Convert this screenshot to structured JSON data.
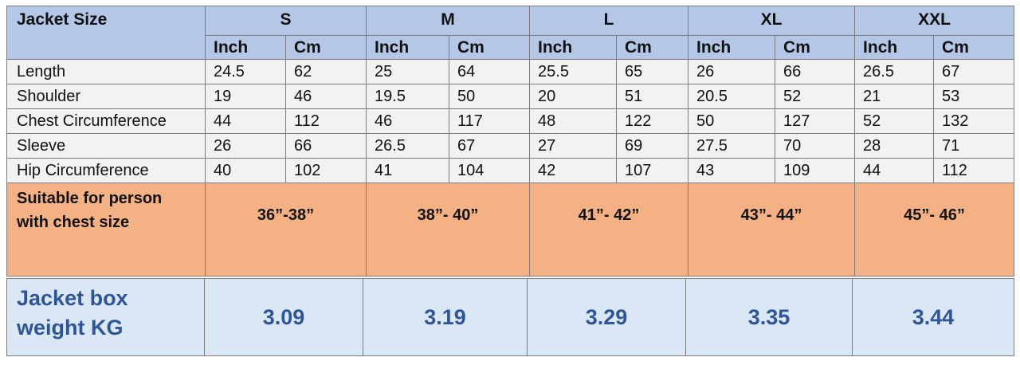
{
  "header": {
    "corner_label": "Jacket Size",
    "sizes": [
      "S",
      "M",
      "L",
      "XL",
      "XXL"
    ],
    "unit_inch": "Inch",
    "unit_cm": "Cm"
  },
  "rows": [
    {
      "label": "Length",
      "values": [
        "24.5",
        "62",
        "25",
        "64",
        "25.5",
        "65",
        "26",
        "66",
        "26.5",
        "67"
      ]
    },
    {
      "label": "Shoulder",
      "values": [
        "19",
        "46",
        "19.5",
        "50",
        "20",
        "51",
        "20.5",
        "52",
        "21",
        "53"
      ]
    },
    {
      "label": "Chest Circumference",
      "values": [
        "44",
        "112",
        "46",
        "117",
        "48",
        "122",
        "50",
        "127",
        "52",
        "132"
      ]
    },
    {
      "label": "Sleeve",
      "values": [
        "26",
        "66",
        "26.5",
        "67",
        "27",
        "69",
        "27.5",
        "70",
        "28",
        "71"
      ]
    },
    {
      "label": "Hip Circumference",
      "values": [
        "40",
        "102",
        "41",
        "104",
        "42",
        "107",
        "43",
        "109",
        "44",
        "112"
      ]
    }
  ],
  "suitable": {
    "label_line1": "Suitable for person",
    "label_line2": "with chest size",
    "ranges": [
      "36”-38”",
      "38”- 40”",
      "41”- 42”",
      "43”- 44”",
      "45”- 46”"
    ]
  },
  "weight": {
    "label_line1": "Jacket box",
    "label_line2": "weight KG",
    "values": [
      "3.09",
      "3.19",
      "3.29",
      "3.35",
      "3.44"
    ]
  },
  "colors": {
    "header_bg": "#b4c7e7",
    "body_bg": "#f2f2f2",
    "suitable_bg": "#f4b183",
    "weight_bg": "#dae8f5",
    "weight_text": "#2f5597"
  }
}
